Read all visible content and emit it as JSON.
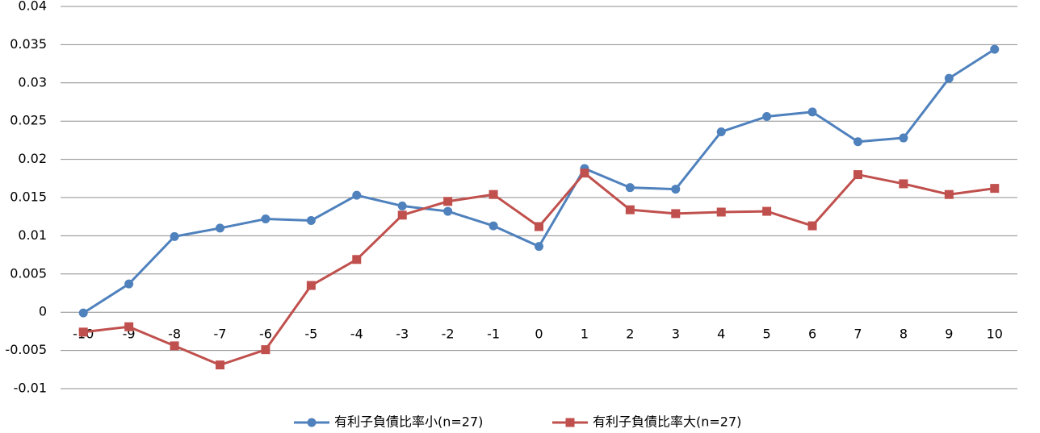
{
  "chart_data": {
    "type": "line",
    "categories": [
      "-10",
      "-9",
      "-8",
      "-7",
      "-6",
      "-5",
      "-4",
      "-3",
      "-2",
      "-1",
      "0",
      "1",
      "2",
      "3",
      "4",
      "5",
      "6",
      "7",
      "8",
      "9",
      "10"
    ],
    "series": [
      {
        "name": "有利子負債比率小(n=27)",
        "color": "#4f81bd",
        "marker": "circle",
        "values": [
          -0.0001,
          0.0037,
          0.0099,
          0.011,
          0.0122,
          0.012,
          0.0153,
          0.0139,
          0.0132,
          0.0113,
          0.0086,
          0.0188,
          0.0163,
          0.0161,
          0.0236,
          0.0256,
          0.0262,
          0.0223,
          0.0228,
          0.0306,
          0.0344
        ]
      },
      {
        "name": "有利子負債比率大(n=27)",
        "color": "#c0504d",
        "marker": "square",
        "values": [
          -0.0026,
          -0.0019,
          -0.0044,
          -0.0069,
          -0.0049,
          0.0035,
          0.0069,
          0.0127,
          0.0145,
          0.0154,
          0.0112,
          0.0182,
          0.0134,
          0.0129,
          0.0131,
          0.0132,
          0.0113,
          0.018,
          0.0168,
          0.0154,
          0.0162
        ]
      }
    ],
    "ylim": [
      -0.01,
      0.04
    ],
    "yticks": [
      -0.01,
      -0.005,
      0,
      0.005,
      0.01,
      0.015,
      0.02,
      0.025,
      0.03,
      0.035,
      0.04
    ],
    "grid": true,
    "legend": "bottom"
  }
}
